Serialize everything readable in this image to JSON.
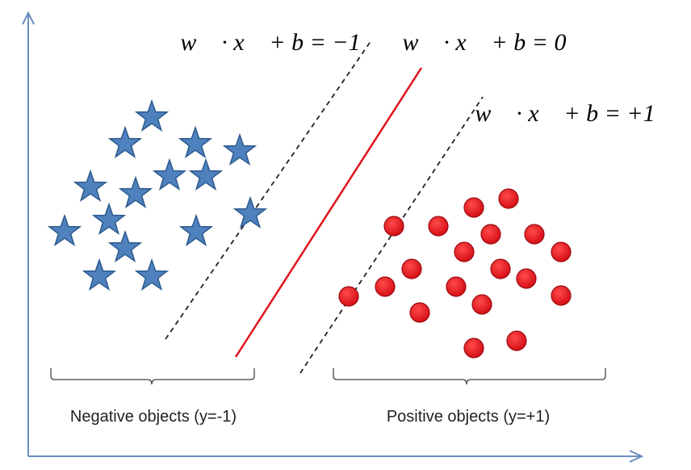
{
  "equations": {
    "negative_margin": "w⃗ · x⃗ + b = −1",
    "decision_boundary": "w⃗ · x⃗ + b = 0",
    "positive_margin": "w⃗ · x⃗ + b = +1"
  },
  "groups": {
    "negative": "Negative objects (y=-1)",
    "positive": "Positive objects (y=+1)"
  }
}
